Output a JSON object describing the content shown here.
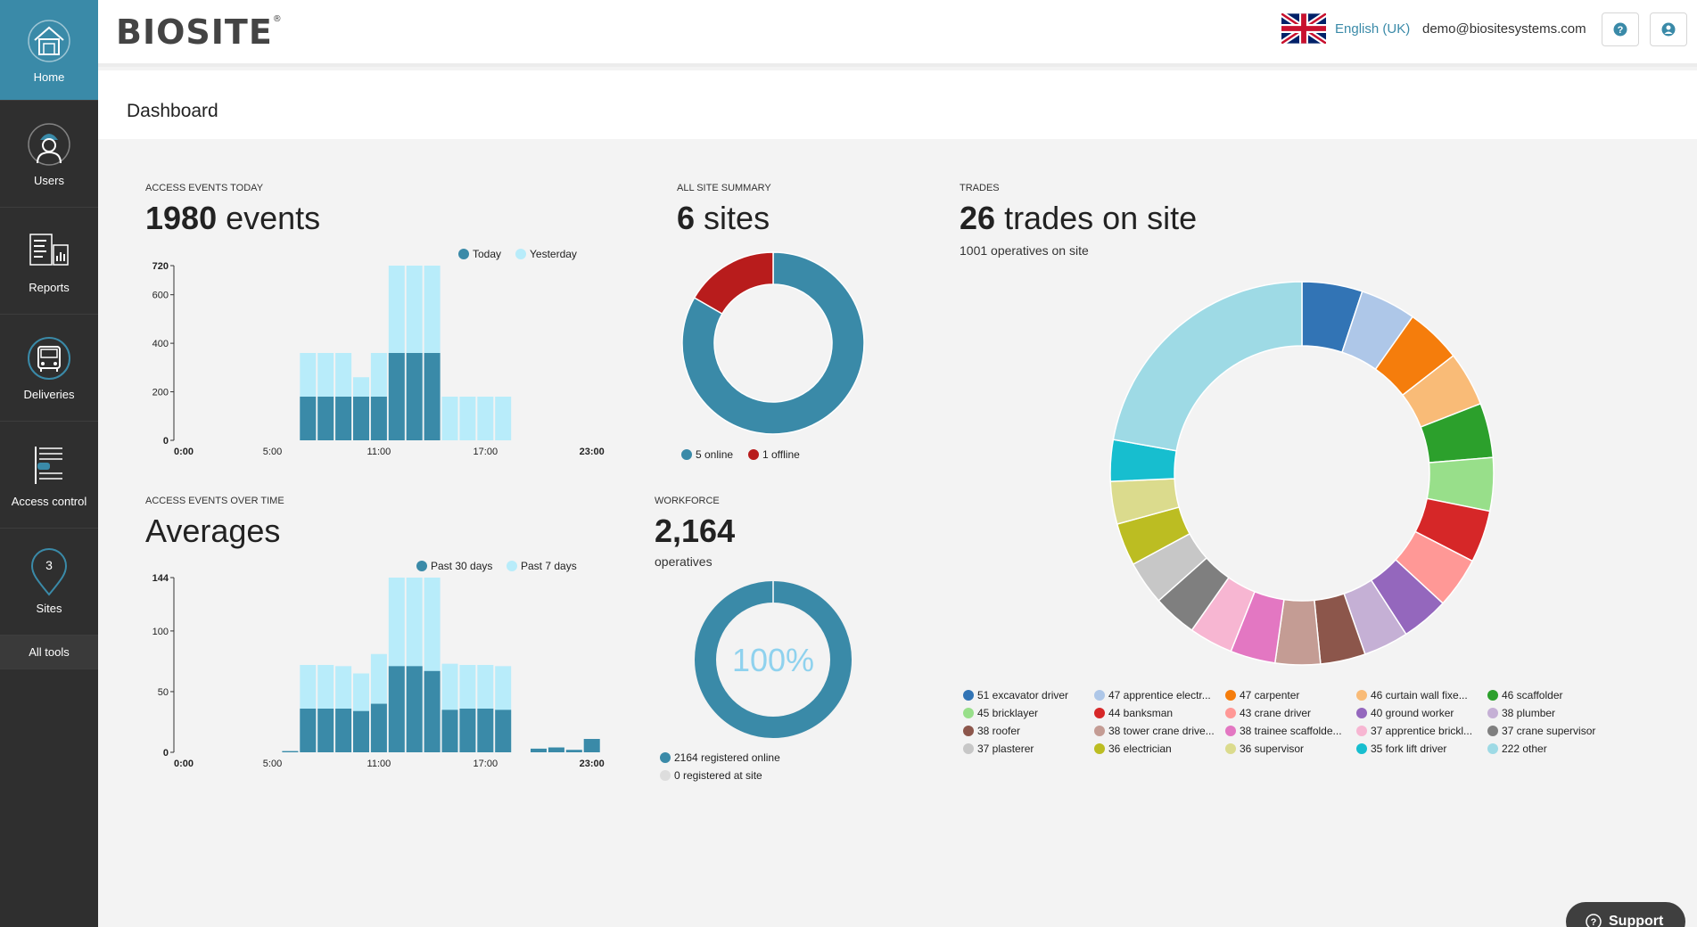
{
  "sidebar": {
    "items": [
      {
        "label": "Home",
        "icon": "house-icon",
        "active": true
      },
      {
        "label": "Users",
        "icon": "worker-icon"
      },
      {
        "label": "Reports",
        "icon": "report-icon"
      },
      {
        "label": "Deliveries",
        "icon": "truck-icon"
      },
      {
        "label": "Access control",
        "icon": "turnstile-icon"
      },
      {
        "label": "Sites",
        "icon": "map-pin-icon"
      }
    ],
    "all_tools": "All tools"
  },
  "header": {
    "logo": "BIOSITE",
    "logo_mark": "®",
    "language": "English (UK)",
    "email": "demo@biositesystems.com"
  },
  "page": {
    "title": "Dashboard"
  },
  "access_today": {
    "label": "ACCESS EVENTS TODAY",
    "count": "1980",
    "unit": "events",
    "legend": [
      "Today",
      "Yesterday"
    ]
  },
  "access_over_time": {
    "label": "ACCESS EVENTS OVER TIME",
    "headline": "Averages",
    "legend": [
      "Past 30 days",
      "Past 7 days"
    ]
  },
  "site_summary": {
    "label": "ALL SITE SUMMARY",
    "count": "6",
    "unit": "sites",
    "legend": [
      "5 online",
      "1 offline"
    ]
  },
  "workforce": {
    "label": "WORKFORCE",
    "count": "2,164",
    "unit": "operatives",
    "center_text": "100%",
    "legend": [
      "2164 registered online",
      "0 registered at site"
    ]
  },
  "trades": {
    "label": "TRADES",
    "count": "26",
    "unit": "trades on site",
    "sub": "1001 operatives on site"
  },
  "support_label": "Support",
  "colors": {
    "primary": "#3a8aa8",
    "light": "#b8ecfa",
    "offline": "#b81c1c",
    "sidebar": "#2f2f2f"
  },
  "chart_data": [
    {
      "type": "bar",
      "title": "ACCESS EVENTS TODAY",
      "x": [
        "0:00",
        "1:00",
        "2:00",
        "3:00",
        "4:00",
        "5:00",
        "6:00",
        "7:00",
        "8:00",
        "9:00",
        "10:00",
        "11:00",
        "12:00",
        "13:00",
        "14:00",
        "15:00",
        "16:00",
        "17:00",
        "18:00",
        "19:00",
        "20:00",
        "21:00",
        "22:00",
        "23:00"
      ],
      "tick_labels": [
        "0:00",
        "5:00",
        "11:00",
        "17:00",
        "23:00"
      ],
      "ylim": [
        0,
        720
      ],
      "yticks": [
        "720",
        "600",
        "400",
        "200",
        "0"
      ],
      "series": [
        {
          "name": "Today",
          "values": [
            0,
            0,
            0,
            0,
            0,
            0,
            0,
            180,
            180,
            180,
            180,
            180,
            360,
            360,
            360,
            0,
            0,
            0,
            0,
            0,
            0,
            0,
            0,
            0
          ]
        },
        {
          "name": "Yesterday",
          "values": [
            0,
            0,
            0,
            0,
            0,
            0,
            0,
            360,
            360,
            360,
            260,
            360,
            720,
            720,
            720,
            180,
            180,
            180,
            180,
            0,
            0,
            0,
            0,
            0
          ]
        }
      ]
    },
    {
      "type": "bar",
      "title": "ACCESS EVENTS OVER TIME",
      "x": [
        "0:00",
        "1:00",
        "2:00",
        "3:00",
        "4:00",
        "5:00",
        "6:00",
        "7:00",
        "8:00",
        "9:00",
        "10:00",
        "11:00",
        "12:00",
        "13:00",
        "14:00",
        "15:00",
        "16:00",
        "17:00",
        "18:00",
        "19:00",
        "20:00",
        "21:00",
        "22:00",
        "23:00"
      ],
      "tick_labels": [
        "0:00",
        "5:00",
        "11:00",
        "17:00",
        "23:00"
      ],
      "ylim": [
        0,
        144
      ],
      "yticks": [
        "144",
        "100",
        "50",
        "0"
      ],
      "series": [
        {
          "name": "Past 30 days",
          "values": [
            0,
            0,
            0,
            0,
            0,
            0,
            1,
            36,
            36,
            36,
            34,
            40,
            71,
            71,
            67,
            35,
            36,
            36,
            35,
            0,
            3,
            4,
            2,
            11
          ]
        },
        {
          "name": "Past 7 days",
          "values": [
            0,
            0,
            0,
            0,
            0,
            0,
            1,
            72,
            72,
            71,
            65,
            81,
            144,
            144,
            144,
            73,
            72,
            72,
            71,
            0,
            3,
            4,
            2,
            11
          ]
        }
      ]
    },
    {
      "type": "pie",
      "title": "ALL SITE SUMMARY",
      "categories": [
        "5 online",
        "1 offline"
      ],
      "values": [
        5,
        1
      ],
      "colors": [
        "#3a8aa8",
        "#b81c1c"
      ]
    },
    {
      "type": "pie",
      "title": "WORKFORCE",
      "categories": [
        "2164 registered online",
        "0 registered at site"
      ],
      "values": [
        2164,
        0
      ],
      "colors": [
        "#3a8aa8",
        "#dddddd"
      ]
    },
    {
      "type": "pie",
      "title": "TRADES",
      "categories": [
        "51 excavator driver",
        "47 apprentice electr...",
        "47 carpenter",
        "46 curtain wall fixe...",
        "46 scaffolder",
        "45 bricklayer",
        "44 banksman",
        "43 crane driver",
        "40 ground worker",
        "38 plumber",
        "38 roofer",
        "38 tower crane drive...",
        "38 trainee scaffolde...",
        "37 apprentice brickl...",
        "37 crane supervisor",
        "37 plasterer",
        "36 electrician",
        "36 supervisor",
        "35 fork lift driver",
        "222 other"
      ],
      "values": [
        51,
        47,
        47,
        46,
        46,
        45,
        44,
        43,
        40,
        38,
        38,
        38,
        38,
        37,
        37,
        37,
        36,
        36,
        35,
        222
      ],
      "colors": [
        "#3274b5",
        "#aec7e8",
        "#f57d0c",
        "#f9bb77",
        "#2ca02c",
        "#98df8a",
        "#d62728",
        "#ff9896",
        "#9467bd",
        "#c5b0d5",
        "#8c564b",
        "#c49c94",
        "#e377c2",
        "#f7b6d2",
        "#7f7f7f",
        "#c7c7c7",
        "#bcbd22",
        "#dbdb8d",
        "#17becf",
        "#9edae5"
      ]
    }
  ]
}
